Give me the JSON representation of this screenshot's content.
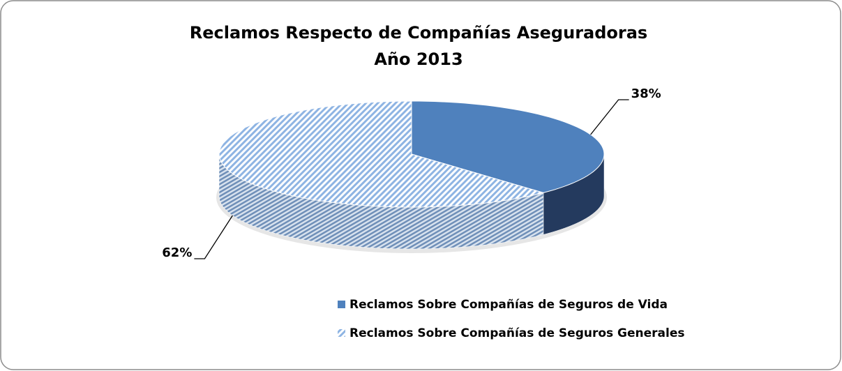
{
  "chart_data": {
    "type": "pie",
    "title": "Reclamos Respecto de Compañías Aseguradoras",
    "subtitle": "Año 2013",
    "categories": [
      "Reclamos Sobre Compañías de Seguros de Vida",
      "Reclamos Sobre Compañías de Seguros Generales"
    ],
    "values": [
      38,
      62
    ],
    "value_labels": [
      "38%",
      "62%"
    ],
    "colors": [
      "#4f81bd",
      "#8eb4e3"
    ],
    "legend": "bottom"
  }
}
